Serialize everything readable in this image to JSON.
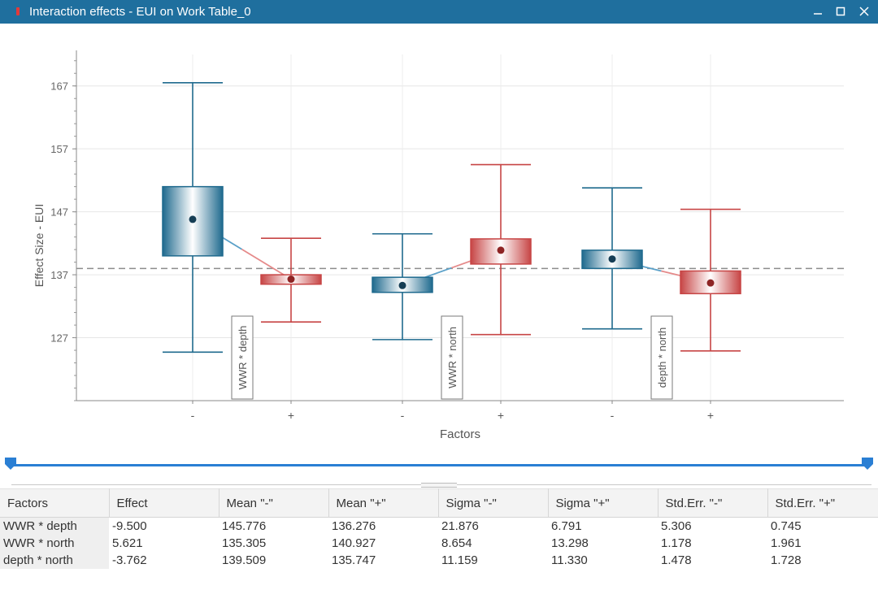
{
  "window": {
    "title": "Interaction effects - EUI on Work Table_0",
    "controls": [
      "minimize-icon",
      "maximize-icon",
      "close-icon"
    ],
    "title_bar_color": "#1f6f9e"
  },
  "chart_data": {
    "type": "boxplot",
    "xlabel": "Factors",
    "ylabel": "Effect Size - EUI",
    "ylim": [
      117,
      172
    ],
    "yticks": [
      127,
      137,
      147,
      157,
      167
    ],
    "reference_line": 138,
    "colors": {
      "minus": "#1f6a8e",
      "plus": "#c74545",
      "mean_line_minus": "#5aa0c8",
      "mean_line_plus": "#e58a8a"
    },
    "groups": [
      {
        "label": "WWR * depth",
        "boxes": [
          {
            "level": "-",
            "min": 124.7,
            "q1": 140.0,
            "mean": 145.8,
            "q3": 151.0,
            "max": 167.5,
            "color": "minus"
          },
          {
            "level": "+",
            "min": 129.5,
            "q1": 135.5,
            "mean": 136.3,
            "q3": 137.0,
            "max": 142.8,
            "color": "plus"
          }
        ]
      },
      {
        "label": "WWR * north",
        "boxes": [
          {
            "level": "-",
            "min": 126.7,
            "q1": 134.2,
            "mean": 135.3,
            "q3": 136.6,
            "max": 143.5,
            "color": "minus"
          },
          {
            "level": "+",
            "min": 127.5,
            "q1": 138.7,
            "mean": 140.9,
            "q3": 142.7,
            "max": 154.5,
            "color": "plus"
          }
        ]
      },
      {
        "label": "depth * north",
        "boxes": [
          {
            "level": "-",
            "min": 128.4,
            "q1": 138.0,
            "mean": 139.5,
            "q3": 140.9,
            "max": 150.8,
            "color": "minus"
          },
          {
            "level": "+",
            "min": 124.9,
            "q1": 134.0,
            "mean": 135.7,
            "q3": 137.6,
            "max": 147.4,
            "color": "plus"
          }
        ]
      }
    ]
  },
  "table": {
    "headers": [
      "Factors",
      "Effect",
      "Mean \"-\"",
      "Mean \"+\"",
      "Sigma \"-\"",
      "Sigma \"+\"",
      "Std.Err. \"-\"",
      "Std.Err. \"+\""
    ],
    "rows": [
      [
        "WWR * depth",
        "-9.500",
        "145.776",
        "136.276",
        "21.876",
        "6.791",
        "5.306",
        "0.745"
      ],
      [
        "WWR * north",
        "5.621",
        "135.305",
        "140.927",
        "8.654",
        "13.298",
        "1.178",
        "1.961"
      ],
      [
        "depth * north",
        "-3.762",
        "139.509",
        "135.747",
        "11.159",
        "11.330",
        "1.478",
        "1.728"
      ]
    ]
  },
  "slider": {
    "range": [
      "start",
      "end"
    ]
  }
}
